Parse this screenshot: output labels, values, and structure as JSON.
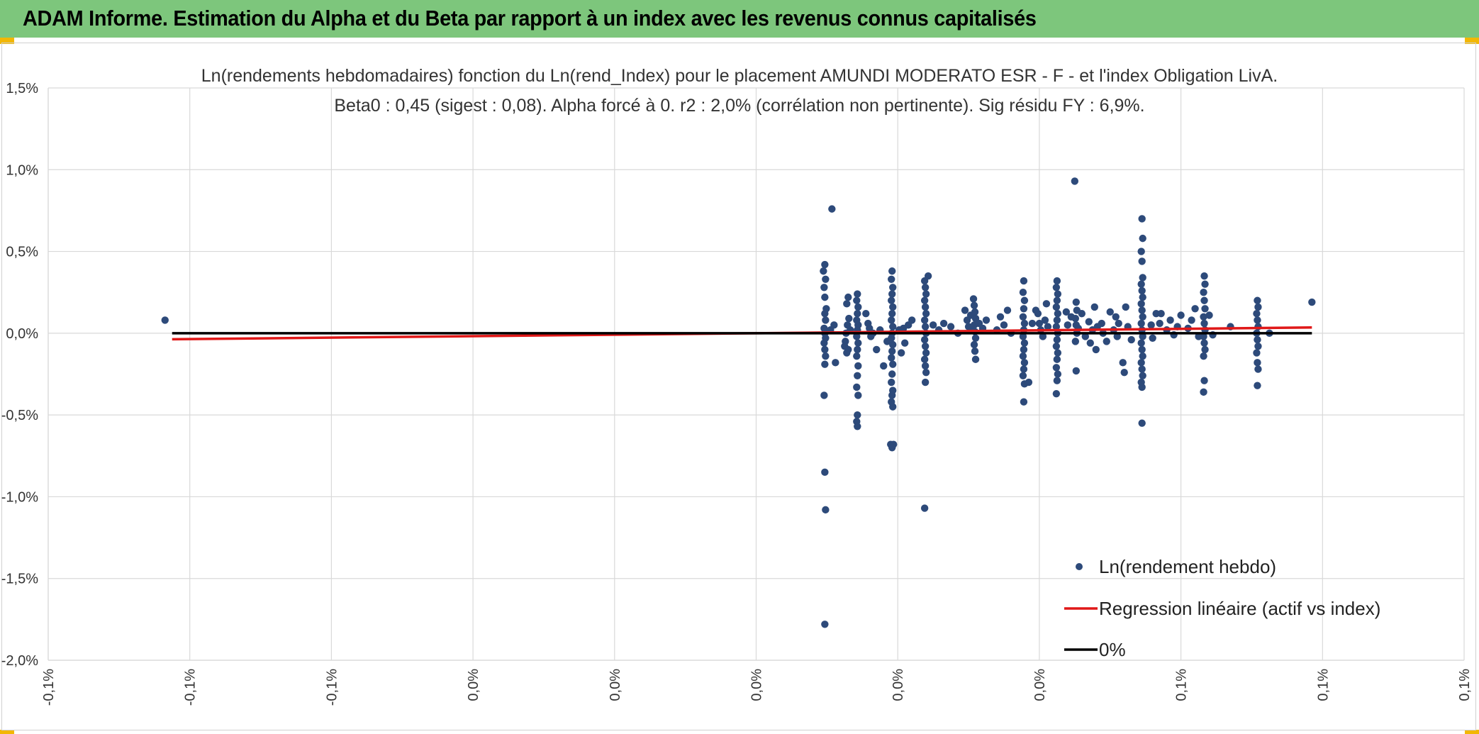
{
  "header": {
    "title": "ADAM Informe. Estimation du Alpha et du Beta par rapport à un index avec les revenus connus capitalisés",
    "background": "#7dc67c",
    "corner_color": "#f2b705"
  },
  "chart_data": {
    "type": "scatter",
    "title_line1": "Ln(rendements hebdomadaires) fonction du Ln(rend_Index) pour le placement AMUNDI MODERATO ESR - F - et l'index Obligation LivA.",
    "title_line2": "Beta0 : 0,45 (sigest : 0,08). Alpha forcé à 0. r2 : 2,0% (corrélation non pertinente). Sig résidu FY : 6,9%.",
    "xlabel": "",
    "ylabel": "",
    "xlim": [
      -0.1,
      0.1
    ],
    "ylim": [
      -2.0,
      1.5
    ],
    "x_tick_labels": [
      "-0,1%",
      "-0,1%",
      "-0,1%",
      "0,0%",
      "0,0%",
      "0,0%",
      "0,0%",
      "0,0%",
      "0,1%",
      "0,1%",
      "0,1%"
    ],
    "y_tick_labels": [
      "1,5%",
      "1,0%",
      "0,5%",
      "0,0%",
      "-0,5%",
      "-1,0%",
      "-1,5%",
      "-2,0%"
    ],
    "y_tick_values": [
      1.5,
      1.0,
      0.5,
      0.0,
      -0.5,
      -1.0,
      -1.5,
      -2.0
    ],
    "grid": true,
    "legend_position": "bottom-right",
    "series": [
      {
        "name": "Ln(rendement hebdo)",
        "kind": "scatter",
        "color": "#2d4a7a",
        "points": [
          [
            -0.0835,
            0.08
          ],
          [
            0.0095,
            0.38
          ],
          [
            0.0097,
            0.42
          ],
          [
            0.0098,
            0.33
          ],
          [
            0.0096,
            0.28
          ],
          [
            0.0097,
            0.22
          ],
          [
            0.0099,
            0.15
          ],
          [
            0.0097,
            0.12
          ],
          [
            0.0098,
            0.08
          ],
          [
            0.0096,
            0.03
          ],
          [
            0.0097,
            0.0
          ],
          [
            0.0098,
            -0.03
          ],
          [
            0.0096,
            -0.06
          ],
          [
            0.0097,
            -0.1
          ],
          [
            0.0098,
            -0.14
          ],
          [
            0.0097,
            -0.19
          ],
          [
            0.0096,
            -0.38
          ],
          [
            0.0097,
            -0.85
          ],
          [
            0.0098,
            -1.08
          ],
          [
            0.0097,
            -1.78
          ],
          [
            0.0107,
            0.76
          ],
          [
            0.0105,
            0.02
          ],
          [
            0.011,
            0.05
          ],
          [
            0.0112,
            -0.18
          ],
          [
            0.0128,
            0.18
          ],
          [
            0.013,
            0.22
          ],
          [
            0.0131,
            0.09
          ],
          [
            0.0129,
            0.05
          ],
          [
            0.0127,
            0.0
          ],
          [
            0.0126,
            -0.05
          ],
          [
            0.013,
            -0.1
          ],
          [
            0.0128,
            -0.12
          ],
          [
            0.0133,
            0.02
          ],
          [
            0.0125,
            -0.08
          ],
          [
            0.0143,
            0.24
          ],
          [
            0.0142,
            0.2
          ],
          [
            0.0144,
            0.16
          ],
          [
            0.0143,
            0.12
          ],
          [
            0.0142,
            0.08
          ],
          [
            0.0144,
            0.05
          ],
          [
            0.0143,
            0.02
          ],
          [
            0.0142,
            -0.02
          ],
          [
            0.0144,
            -0.06
          ],
          [
            0.0143,
            -0.1
          ],
          [
            0.0142,
            -0.14
          ],
          [
            0.0144,
            -0.2
          ],
          [
            0.0143,
            -0.26
          ],
          [
            0.0142,
            -0.33
          ],
          [
            0.0144,
            -0.38
          ],
          [
            0.0143,
            -0.5
          ],
          [
            0.0142,
            -0.54
          ],
          [
            0.0143,
            -0.57
          ],
          [
            0.0155,
            0.12
          ],
          [
            0.0158,
            0.06
          ],
          [
            0.016,
            0.03
          ],
          [
            0.0162,
            -0.02
          ],
          [
            0.0165,
            0.0
          ],
          [
            0.017,
            -0.1
          ],
          [
            0.0175,
            0.02
          ],
          [
            0.018,
            -0.2
          ],
          [
            0.0185,
            -0.05
          ],
          [
            0.0192,
            0.38
          ],
          [
            0.0191,
            0.33
          ],
          [
            0.0193,
            0.28
          ],
          [
            0.0192,
            0.24
          ],
          [
            0.0191,
            0.2
          ],
          [
            0.0193,
            0.16
          ],
          [
            0.0192,
            0.12
          ],
          [
            0.0191,
            0.08
          ],
          [
            0.0193,
            0.04
          ],
          [
            0.0192,
            0.0
          ],
          [
            0.0191,
            -0.03
          ],
          [
            0.0193,
            -0.07
          ],
          [
            0.0192,
            -0.11
          ],
          [
            0.0191,
            -0.15
          ],
          [
            0.0193,
            -0.19
          ],
          [
            0.0192,
            -0.25
          ],
          [
            0.0191,
            -0.3
          ],
          [
            0.0193,
            -0.35
          ],
          [
            0.0192,
            -0.38
          ],
          [
            0.0191,
            -0.42
          ],
          [
            0.0193,
            -0.45
          ],
          [
            0.019,
            -0.68
          ],
          [
            0.0194,
            -0.68
          ],
          [
            0.0192,
            -0.7
          ],
          [
            0.0202,
            0.02
          ],
          [
            0.0205,
            -0.12
          ],
          [
            0.0208,
            0.03
          ],
          [
            0.021,
            -0.06
          ],
          [
            0.0215,
            0.05
          ],
          [
            0.022,
            0.08
          ],
          [
            0.0238,
            0.32
          ],
          [
            0.0239,
            0.28
          ],
          [
            0.024,
            0.24
          ],
          [
            0.0238,
            0.2
          ],
          [
            0.0239,
            0.16
          ],
          [
            0.024,
            0.12
          ],
          [
            0.0238,
            0.08
          ],
          [
            0.0239,
            0.04
          ],
          [
            0.024,
            0.0
          ],
          [
            0.0238,
            -0.04
          ],
          [
            0.0239,
            -0.08
          ],
          [
            0.024,
            -0.12
          ],
          [
            0.0238,
            -0.16
          ],
          [
            0.0239,
            -0.2
          ],
          [
            0.024,
            -0.24
          ],
          [
            0.0239,
            -0.3
          ],
          [
            0.0238,
            -1.07
          ],
          [
            0.0243,
            0.35
          ],
          [
            0.025,
            0.05
          ],
          [
            0.0258,
            0.02
          ],
          [
            0.0265,
            0.06
          ],
          [
            0.0275,
            0.04
          ],
          [
            0.0285,
            0.0
          ],
          [
            0.0295,
            0.14
          ],
          [
            0.0298,
            0.08
          ],
          [
            0.03,
            0.04
          ],
          [
            0.0303,
            0.11
          ],
          [
            0.0305,
            0.02
          ],
          [
            0.0307,
            0.21
          ],
          [
            0.0308,
            0.17
          ],
          [
            0.0309,
            0.13
          ],
          [
            0.031,
            0.09
          ],
          [
            0.0308,
            0.05
          ],
          [
            0.0309,
            0.01
          ],
          [
            0.031,
            -0.03
          ],
          [
            0.0308,
            -0.07
          ],
          [
            0.0309,
            -0.11
          ],
          [
            0.031,
            -0.16
          ],
          [
            0.0315,
            0.06
          ],
          [
            0.032,
            0.03
          ],
          [
            0.0325,
            0.08
          ],
          [
            0.034,
            0.02
          ],
          [
            0.0345,
            0.1
          ],
          [
            0.035,
            0.05
          ],
          [
            0.0355,
            0.14
          ],
          [
            0.036,
            0.0
          ],
          [
            0.0378,
            0.32
          ],
          [
            0.0377,
            0.25
          ],
          [
            0.0379,
            0.2
          ],
          [
            0.0378,
            0.15
          ],
          [
            0.0377,
            0.1
          ],
          [
            0.0379,
            0.06
          ],
          [
            0.0378,
            0.02
          ],
          [
            0.0377,
            -0.02
          ],
          [
            0.0379,
            -0.06
          ],
          [
            0.0378,
            -0.1
          ],
          [
            0.0377,
            -0.14
          ],
          [
            0.0379,
            -0.18
          ],
          [
            0.0378,
            -0.22
          ],
          [
            0.0377,
            -0.26
          ],
          [
            0.0379,
            -0.31
          ],
          [
            0.0378,
            -0.42
          ],
          [
            0.0385,
            -0.3
          ],
          [
            0.039,
            0.06
          ],
          [
            0.0395,
            0.14
          ],
          [
            0.0398,
            0.12
          ],
          [
            0.04,
            0.06
          ],
          [
            0.0402,
            0.02
          ],
          [
            0.0405,
            -0.02
          ],
          [
            0.0408,
            0.08
          ],
          [
            0.041,
            0.18
          ],
          [
            0.0412,
            0.04
          ],
          [
            0.0425,
            0.32
          ],
          [
            0.0424,
            0.28
          ],
          [
            0.0426,
            0.24
          ],
          [
            0.0425,
            0.2
          ],
          [
            0.0424,
            0.16
          ],
          [
            0.0426,
            0.12
          ],
          [
            0.0425,
            0.08
          ],
          [
            0.0424,
            0.04
          ],
          [
            0.0426,
            0.0
          ],
          [
            0.0425,
            -0.04
          ],
          [
            0.0424,
            -0.08
          ],
          [
            0.0426,
            -0.12
          ],
          [
            0.0425,
            -0.16
          ],
          [
            0.0424,
            -0.21
          ],
          [
            0.0426,
            -0.25
          ],
          [
            0.0425,
            -0.29
          ],
          [
            0.0424,
            -0.37
          ],
          [
            0.0438,
            0.13
          ],
          [
            0.044,
            0.05
          ],
          [
            0.0445,
            0.1
          ],
          [
            0.045,
            0.93
          ],
          [
            0.0452,
            0.19
          ],
          [
            0.0453,
            0.14
          ],
          [
            0.0451,
            0.09
          ],
          [
            0.0452,
            0.05
          ],
          [
            0.0453,
            0.0
          ],
          [
            0.0451,
            -0.05
          ],
          [
            0.0452,
            -0.23
          ],
          [
            0.0455,
            0.03
          ],
          [
            0.046,
            0.12
          ],
          [
            0.0465,
            -0.02
          ],
          [
            0.047,
            0.07
          ],
          [
            0.0472,
            -0.06
          ],
          [
            0.0475,
            0.02
          ],
          [
            0.0478,
            0.16
          ],
          [
            0.048,
            -0.1
          ],
          [
            0.0482,
            0.04
          ],
          [
            0.0488,
            0.06
          ],
          [
            0.049,
            0.0
          ],
          [
            0.0495,
            -0.05
          ],
          [
            0.05,
            0.13
          ],
          [
            0.0505,
            0.02
          ],
          [
            0.0508,
            0.1
          ],
          [
            0.051,
            -0.02
          ],
          [
            0.0512,
            0.06
          ],
          [
            0.0518,
            -0.18
          ],
          [
            0.052,
            -0.24
          ],
          [
            0.0522,
            0.16
          ],
          [
            0.0525,
            0.04
          ],
          [
            0.053,
            -0.04
          ],
          [
            0.0545,
            0.7
          ],
          [
            0.0546,
            0.58
          ],
          [
            0.0544,
            0.5
          ],
          [
            0.0545,
            0.44
          ],
          [
            0.0546,
            0.34
          ],
          [
            0.0544,
            0.3
          ],
          [
            0.0545,
            0.26
          ],
          [
            0.0546,
            0.22
          ],
          [
            0.0544,
            0.18
          ],
          [
            0.0545,
            0.14
          ],
          [
            0.0546,
            0.1
          ],
          [
            0.0544,
            0.06
          ],
          [
            0.0545,
            0.02
          ],
          [
            0.0546,
            -0.02
          ],
          [
            0.0544,
            -0.06
          ],
          [
            0.0545,
            -0.1
          ],
          [
            0.0546,
            -0.14
          ],
          [
            0.0544,
            -0.18
          ],
          [
            0.0545,
            -0.22
          ],
          [
            0.0546,
            -0.26
          ],
          [
            0.0544,
            -0.3
          ],
          [
            0.0545,
            -0.33
          ],
          [
            0.0545,
            -0.55
          ],
          [
            0.0558,
            0.05
          ],
          [
            0.056,
            -0.03
          ],
          [
            0.0565,
            0.12
          ],
          [
            0.057,
            0.06
          ],
          [
            0.0572,
            0.12
          ],
          [
            0.058,
            0.02
          ],
          [
            0.0585,
            0.08
          ],
          [
            0.059,
            -0.01
          ],
          [
            0.0595,
            0.04
          ],
          [
            0.06,
            0.11
          ],
          [
            0.061,
            0.03
          ],
          [
            0.0615,
            0.08
          ],
          [
            0.062,
            0.15
          ],
          [
            0.0625,
            -0.02
          ],
          [
            0.0633,
            0.35
          ],
          [
            0.0634,
            0.3
          ],
          [
            0.0632,
            0.25
          ],
          [
            0.0633,
            0.2
          ],
          [
            0.0634,
            0.15
          ],
          [
            0.0632,
            0.1
          ],
          [
            0.0633,
            0.06
          ],
          [
            0.0634,
            0.02
          ],
          [
            0.0632,
            -0.02
          ],
          [
            0.0633,
            -0.06
          ],
          [
            0.0634,
            -0.1
          ],
          [
            0.0632,
            -0.14
          ],
          [
            0.0633,
            -0.29
          ],
          [
            0.0632,
            -0.36
          ],
          [
            0.064,
            0.11
          ],
          [
            0.0645,
            -0.01
          ],
          [
            0.067,
            0.04
          ],
          [
            0.0708,
            0.2
          ],
          [
            0.0709,
            0.16
          ],
          [
            0.0707,
            0.12
          ],
          [
            0.0708,
            0.08
          ],
          [
            0.0709,
            0.04
          ],
          [
            0.0707,
            0.0
          ],
          [
            0.0708,
            -0.04
          ],
          [
            0.0709,
            -0.08
          ],
          [
            0.0707,
            -0.12
          ],
          [
            0.0708,
            -0.18
          ],
          [
            0.0709,
            -0.22
          ],
          [
            0.0708,
            -0.32
          ],
          [
            0.0725,
            0.0
          ],
          [
            0.0785,
            0.19
          ]
        ]
      },
      {
        "name": "Regression linéaire (actif vs index)",
        "kind": "line",
        "color": "#e01818",
        "points": [
          [
            -0.0825,
            -0.037
          ],
          [
            0.0785,
            0.035
          ]
        ]
      },
      {
        "name": "0%",
        "kind": "line",
        "color": "#000000",
        "points": [
          [
            -0.0825,
            0.0
          ],
          [
            0.0785,
            0.0
          ]
        ]
      }
    ]
  }
}
